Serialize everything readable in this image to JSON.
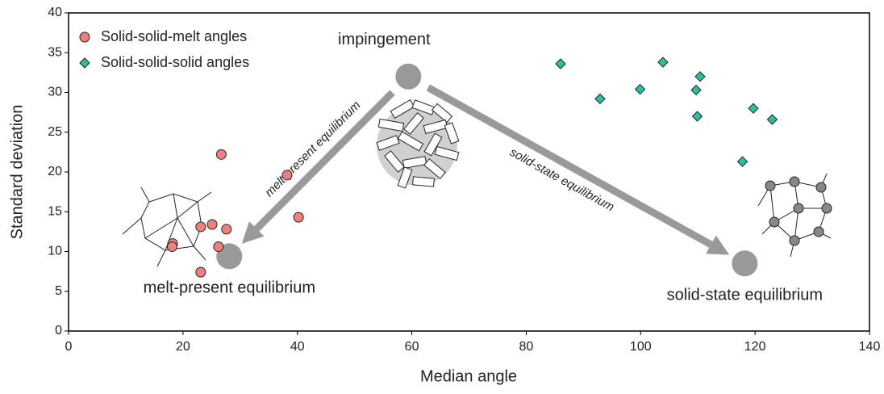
{
  "chart_data": {
    "type": "scatter",
    "xlabel": "Median angle",
    "ylabel": "Standard deviation",
    "xlim": [
      0,
      140
    ],
    "ylim": [
      0,
      40
    ],
    "xticks": [
      0,
      20,
      40,
      60,
      80,
      100,
      120,
      140
    ],
    "yticks": [
      0,
      5,
      10,
      15,
      20,
      25,
      30,
      35,
      40
    ],
    "legend": "upper left",
    "series": [
      {
        "name": "Solid-solid-melt angles",
        "color": "#f08080",
        "marker": "circle",
        "x": [
          26.7,
          38.2,
          40.2,
          18.2,
          18.1,
          23.1,
          25.1,
          27.6,
          26.2,
          23.1
        ],
        "y": [
          22.2,
          19.6,
          14.3,
          11.0,
          10.6,
          13.1,
          13.4,
          12.8,
          10.6,
          7.4
        ]
      },
      {
        "name": "Solid-solid-solid angles",
        "color": "#2bbf9f",
        "marker": "diamond",
        "x": [
          86.0,
          92.9,
          99.9,
          103.9,
          110.4,
          109.7,
          109.9,
          119.7,
          123.0,
          117.8
        ],
        "y": [
          33.6,
          29.2,
          30.4,
          33.8,
          32.0,
          30.3,
          27.0,
          28.0,
          26.6,
          21.3
        ]
      }
    ],
    "annotations": [
      {
        "text": "impingement",
        "x": 59.4,
        "y": 32.0
      },
      {
        "text": "melt-present equilibrium",
        "x": 28.1,
        "y": 9.4
      },
      {
        "text": "solid-state equilibrium",
        "x": 118.2,
        "y": 8.5
      }
    ],
    "arrow_labels": [
      "melt-present equilibrium",
      "solid-state equilibrium"
    ]
  }
}
